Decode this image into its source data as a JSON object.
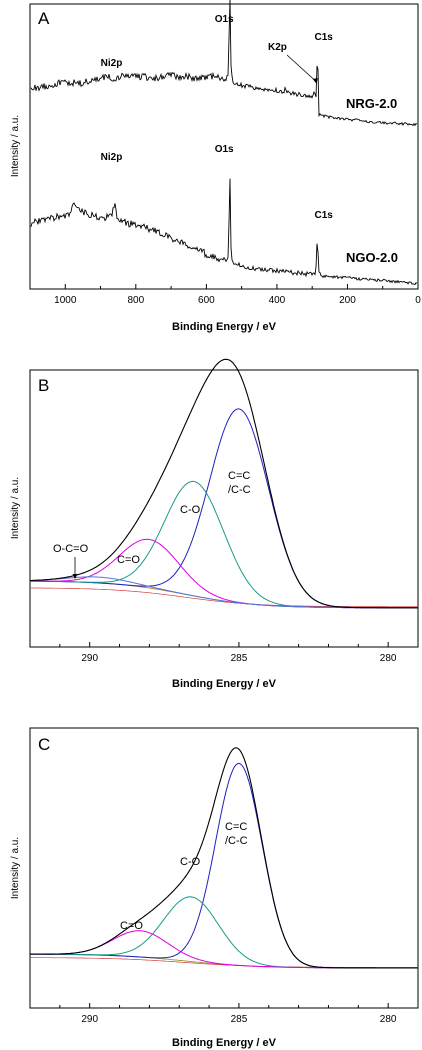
{
  "chart_data": [
    {
      "type": "line",
      "panel": "A",
      "xlabel": "Binding Energy / eV",
      "ylabel": "Intensity / a.u.",
      "xlim": [
        1100,
        0
      ],
      "x_reversed": true,
      "xticks": [
        1000,
        800,
        600,
        400,
        200,
        0
      ],
      "samples": [
        "NRG-2.0",
        "NGO-2.0"
      ],
      "series": [
        {
          "name": "NRG-2.0",
          "color": "#000000",
          "points": [
            [
              1100,
              72
            ],
            [
              1050,
              76
            ],
            [
              1000,
              80
            ],
            [
              960,
              78
            ],
            [
              920,
              82
            ],
            [
              880,
              86
            ],
            [
              860,
              84
            ],
            [
              820,
              88
            ],
            [
              780,
              86
            ],
            [
              740,
              84
            ],
            [
              700,
              88
            ],
            [
              660,
              86
            ],
            [
              620,
              84
            ],
            [
              580,
              86
            ],
            [
              560,
              85
            ],
            [
              545,
              82
            ],
            [
              538,
              90
            ],
            [
              533,
              180
            ],
            [
              530,
              95
            ],
            [
              525,
              78
            ],
            [
              500,
              76
            ],
            [
              450,
              72
            ],
            [
              400,
              70
            ],
            [
              380,
              68
            ],
            [
              376,
              74
            ],
            [
              372,
              68
            ],
            [
              350,
              66
            ],
            [
              300,
              64
            ],
            [
              293,
              68
            ],
            [
              290,
              62
            ],
            [
              287,
              66
            ],
            [
              285,
              165
            ],
            [
              283,
              70
            ],
            [
              281,
              42
            ],
            [
              270,
              40
            ],
            [
              200,
              36
            ],
            [
              150,
              34
            ],
            [
              100,
              32
            ],
            [
              50,
              31
            ],
            [
              0,
              30
            ]
          ],
          "peaks": [
            {
              "label": "Ni2p",
              "x": 860
            },
            {
              "label": "O1s",
              "x": 531
            },
            {
              "label": "K2p",
              "x": 293
            },
            {
              "label": "C1s",
              "x": 285
            }
          ]
        },
        {
          "name": "NGO-2.0",
          "color": "#000000",
          "points": [
            [
              1100,
              76
            ],
            [
              1060,
              80
            ],
            [
              1020,
              84
            ],
            [
              990,
              86
            ],
            [
              975,
              98
            ],
            [
              960,
              92
            ],
            [
              940,
              88
            ],
            [
              920,
              84
            ],
            [
              900,
              82
            ],
            [
              880,
              84
            ],
            [
              868,
              86
            ],
            [
              860,
              98
            ],
            [
              852,
              80
            ],
            [
              820,
              76
            ],
            [
              780,
              72
            ],
            [
              740,
              66
            ],
            [
              700,
              58
            ],
            [
              660,
              52
            ],
            [
              640,
              48
            ],
            [
              620,
              44
            ],
            [
              600,
              40
            ],
            [
              580,
              36
            ],
            [
              560,
              34
            ],
            [
              545,
              33
            ],
            [
              538,
              36
            ],
            [
              533,
              130
            ],
            [
              530,
              42
            ],
            [
              525,
              30
            ],
            [
              500,
              26
            ],
            [
              450,
              22
            ],
            [
              400,
              20
            ],
            [
              350,
              18
            ],
            [
              300,
              16
            ],
            [
              290,
              16
            ],
            [
              285,
              66
            ],
            [
              282,
              18
            ],
            [
              270,
              14
            ],
            [
              200,
              12
            ],
            [
              150,
              10
            ],
            [
              100,
              9
            ],
            [
              50,
              7
            ],
            [
              0,
              5
            ]
          ],
          "peaks": [
            {
              "label": "Ni2p",
              "x": 860
            },
            {
              "label": "O1s",
              "x": 531
            },
            {
              "label": "C1s",
              "x": 285
            }
          ]
        }
      ]
    },
    {
      "type": "line",
      "panel": "B",
      "xlabel": "Binding Energy / eV",
      "ylabel": "Intensity / a.u.",
      "xlim": [
        292,
        279
      ],
      "x_reversed": true,
      "xticks": [
        290,
        285,
        280
      ],
      "components": [
        {
          "label": "C=C\n/C-C",
          "label_lines": [
            "C=C",
            "/C-C"
          ],
          "center": 285.0,
          "height": 100,
          "width": 1.4,
          "color": "#2020c0"
        },
        {
          "label": "C-O",
          "center": 286.5,
          "height": 59,
          "width": 1.4,
          "color": "#1a9a8a"
        },
        {
          "label": "C=O",
          "center": 288.0,
          "height": 25,
          "width": 1.4,
          "color": "#e000e0"
        },
        {
          "label": "O-C=O",
          "center": 289.7,
          "height": 3,
          "width": 1.5,
          "color": "#4a7ad8"
        }
      ],
      "envelope_color": "#000000",
      "background": {
        "left": 12,
        "right": -2,
        "color": "#c07030"
      }
    },
    {
      "type": "line",
      "panel": "C",
      "xlabel": "Binding Energy / eV",
      "ylabel": "Intensity / a.u.",
      "xlim": [
        292,
        279
      ],
      "x_reversed": true,
      "xticks": [
        290,
        285,
        280
      ],
      "components": [
        {
          "label": "C=C\n/C-C",
          "label_lines": [
            "C=C",
            "/C-C"
          ],
          "center": 285.0,
          "height": 100,
          "width": 1.1,
          "color": "#2020c0"
        },
        {
          "label": "C-O",
          "center": 286.6,
          "height": 32,
          "width": 1.3,
          "color": "#1a9a8a"
        },
        {
          "label": "C=O",
          "center": 288.3,
          "height": 13,
          "width": 1.3,
          "color": "#e000e0"
        }
      ],
      "envelope_color": "#000000",
      "background": {
        "left": 6,
        "right": -1,
        "color": "#9a9a30"
      }
    }
  ]
}
